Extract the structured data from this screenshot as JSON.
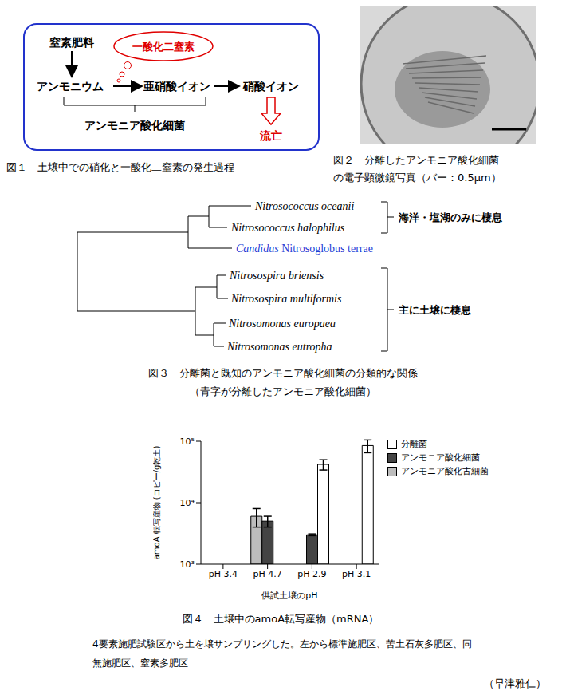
{
  "figure1": {
    "caption": "図１　土壌中での硝化と一酸化二窒素の発生過程",
    "nodes": {
      "fertilizer": "窒素肥料",
      "ammonium": "アンモニウム",
      "nitrite": "亜硝酸イオン",
      "nitrate": "硝酸イオン",
      "n2o": "一酸化二窒素",
      "bacteria": "アンモニア酸化細菌",
      "leaching": "流亡"
    }
  },
  "figure2": {
    "caption": [
      "図２　分離したアンモニア酸化細菌",
      "の電子顕微鏡写真（バー：0.5μm）"
    ]
  },
  "figure3": {
    "leaves": [
      {
        "name": "Nitrosococcus oceanii"
      },
      {
        "name": "Nitrosococcus halophilus"
      },
      {
        "prefix": "Candidus",
        "name": "Nitrosoglobus terrae",
        "color": "#1f3fd6"
      },
      {
        "name": "Nitrosospira briensis"
      },
      {
        "name": "Nitrosospira multiformis"
      },
      {
        "name": "Nitrosomonas europaea"
      },
      {
        "name": "Nitrosomonas eutropha"
      }
    ],
    "groups": [
      {
        "label": "海洋・塩湖のみに棲息"
      },
      {
        "label": "主に土壌に棲息"
      }
    ],
    "caption": "図３　分離菌と既知のアンモニア酸化細菌の分類的な関係",
    "subcaption": "（青字が分離したアンモニア酸化細菌）"
  },
  "chart_data": {
    "type": "bar",
    "categories": [
      "pH 3.4",
      "pH 4.7",
      "pH 2.9",
      "pH 3.1"
    ],
    "xlabel": "供試土壌のpH",
    "ylabel": "amoA 転写産物 (コピー/g乾土)",
    "log": "y",
    "ylim": [
      1000,
      100000
    ],
    "yticks": [
      {
        "value": 1000,
        "label": "10³"
      },
      {
        "value": 10000,
        "label": "10⁴"
      },
      {
        "value": 100000,
        "label": "10⁵"
      }
    ],
    "grid": false,
    "legend": "right",
    "series": [
      {
        "name": "分離菌",
        "color": "#ffffff",
        "values": [
          null,
          null,
          42000,
          85000
        ],
        "errors": [
          null,
          null,
          8000,
          20000
        ]
      },
      {
        "name": "アンモニア酸化細菌",
        "color": "#444444",
        "values": [
          null,
          5000,
          3000,
          null
        ],
        "errors": [
          null,
          1000,
          100,
          null
        ]
      },
      {
        "name": "アンモニア酸化古細菌",
        "color": "#bdbdbd",
        "values": [
          null,
          6000,
          null,
          null
        ],
        "errors": [
          null,
          2000,
          null,
          null
        ]
      }
    ]
  },
  "figure4": {
    "caption": "図４　土壌中のamoA転写産物（mRNA）",
    "note": "4要素施肥試験区から土を壌サンプリングした。左から標準施肥区、苦土石灰多肥区、同無施肥区、窒素多肥区"
  },
  "author": "（早津雅仁）"
}
